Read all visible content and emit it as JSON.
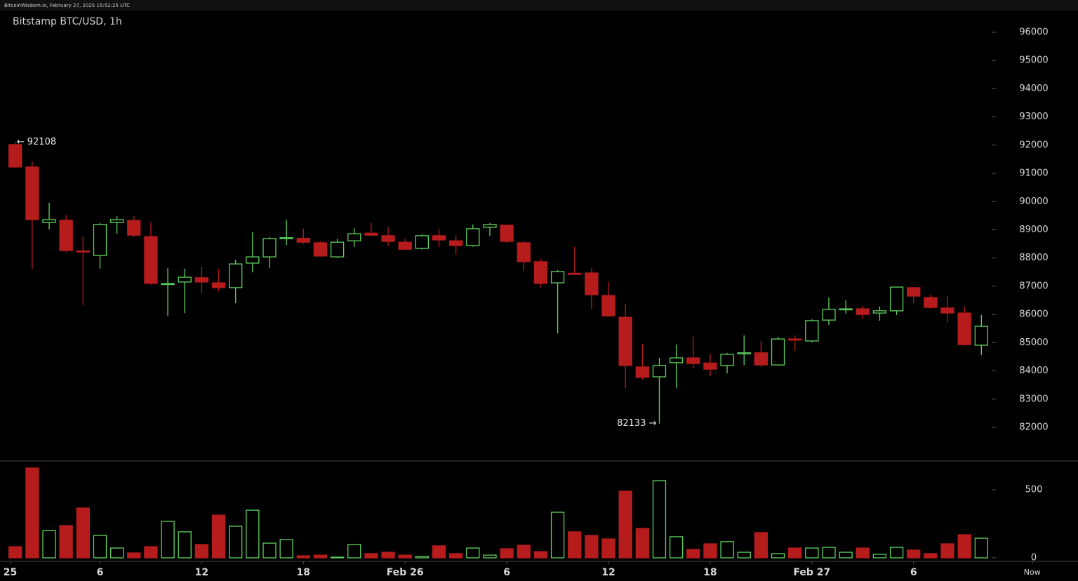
{
  "header": "BitcoinWisdom.io, February 27, 2025 15:52:25 UTC",
  "chart_data": {
    "type": "candlestick",
    "title": "Bitstamp BTC/USD, 1h",
    "up_color": "#5fd35f",
    "down_color": "#b71c1c",
    "open": [
      92020,
      91225,
      89260,
      89340,
      88250,
      88090,
      89260,
      89330,
      88760,
      87060,
      87150,
      87300,
      87120,
      86950,
      87820,
      88040,
      88700,
      88700,
      88540,
      88040,
      88610,
      88880,
      88790,
      88560,
      88340,
      88790,
      88610,
      88440,
      89090,
      89160,
      88540,
      87870,
      87120,
      87460,
      87470,
      86670,
      85900,
      84140,
      83790,
      84290,
      84460,
      84280,
      84190,
      84610,
      84640,
      84210,
      85130,
      85060,
      85800,
      86180,
      86200,
      86050,
      86130,
      86950,
      86600,
      86230,
      86050,
      84910
    ],
    "high": [
      92108,
      91420,
      89960,
      89530,
      88760,
      89240,
      89480,
      89480,
      89280,
      87640,
      87620,
      87700,
      87620,
      87940,
      88910,
      88740,
      89360,
      89040,
      88600,
      88680,
      89060,
      89240,
      89090,
      88680,
      88840,
      89040,
      88810,
      89190,
      89240,
      89190,
      88590,
      87970,
      87570,
      88390,
      87640,
      87150,
      86380,
      84960,
      84460,
      84930,
      85210,
      84610,
      84640,
      85260,
      85060,
      85210,
      85260,
      85830,
      86600,
      86500,
      86300,
      86280,
      86980,
      86980,
      86700,
      86650,
      86280,
      85980
    ],
    "low": [
      91225,
      87620,
      89010,
      88200,
      86330,
      87620,
      88860,
      88740,
      87050,
      85950,
      86050,
      86750,
      86820,
      86400,
      87490,
      87640,
      88460,
      88500,
      88050,
      88000,
      88390,
      88780,
      88440,
      88280,
      88300,
      88390,
      88120,
      88400,
      88790,
      88540,
      87540,
      86950,
      85330,
      87400,
      86200,
      85920,
      83390,
      83690,
      82133,
      83390,
      84110,
      83810,
      83910,
      84210,
      84140,
      84180,
      84710,
      85010,
      85630,
      86030,
      85850,
      85780,
      85980,
      86400,
      86200,
      85710,
      84900,
      84560
    ],
    "close": [
      91225,
      89360,
      89360,
      88265,
      88220,
      89190,
      89360,
      88810,
      87100,
      87100,
      87320,
      87150,
      86950,
      87790,
      88040,
      88690,
      88720,
      88560,
      88070,
      88560,
      88860,
      88810,
      88590,
      88310,
      88790,
      88640,
      88440,
      89040,
      89190,
      88590,
      87870,
      87100,
      87520,
      87420,
      86700,
      85950,
      84190,
      83770,
      84190,
      84460,
      84260,
      84060,
      84590,
      84640,
      84210,
      85130,
      85090,
      85780,
      86180,
      86200,
      86000,
      86130,
      86970,
      86650,
      86250,
      86050,
      84930,
      85580
    ],
    "volume": [
      82,
      660,
      200,
      237,
      366,
      165,
      72,
      36,
      82,
      268,
      191,
      98,
      314,
      232,
      350,
      108,
      134,
      15,
      20,
      5,
      98,
      31,
      41,
      20,
      10,
      88,
      31,
      72,
      20,
      67,
      93,
      46,
      335,
      191,
      165,
      139,
      490,
      216,
      567,
      155,
      62,
      103,
      119,
      41,
      186,
      31,
      72,
      72,
      77,
      41,
      72,
      26,
      77,
      57,
      31,
      103,
      170,
      144
    ],
    "xlim": [
      -0.9,
      62.7
    ],
    "xticks": [
      {
        "value": -0.3,
        "label": "25"
      },
      {
        "value": 5,
        "label": "6"
      },
      {
        "value": 11,
        "label": "12"
      },
      {
        "value": 17,
        "label": "18"
      },
      {
        "value": 23,
        "label": "Feb 26"
      },
      {
        "value": 29,
        "label": "6"
      },
      {
        "value": 35,
        "label": "12"
      },
      {
        "value": 41,
        "label": "18"
      },
      {
        "value": 47,
        "label": "Feb 27"
      },
      {
        "value": 53,
        "label": "6"
      },
      {
        "value": 60,
        "label": "Now"
      }
    ],
    "ylim": [
      81000,
      96800
    ],
    "yticks": [
      82000,
      83000,
      84000,
      85000,
      86000,
      87000,
      88000,
      89000,
      90000,
      91000,
      92000,
      93000,
      94000,
      95000,
      96000
    ],
    "volume_ylim": [
      0,
      700
    ],
    "volume_yticks": [
      0,
      500
    ],
    "annotations": [
      {
        "index": 0,
        "value": 92108,
        "label": "← 92108",
        "side": "right"
      },
      {
        "index": 38,
        "value": 82133,
        "label": "82133 →",
        "side": "left"
      }
    ]
  }
}
